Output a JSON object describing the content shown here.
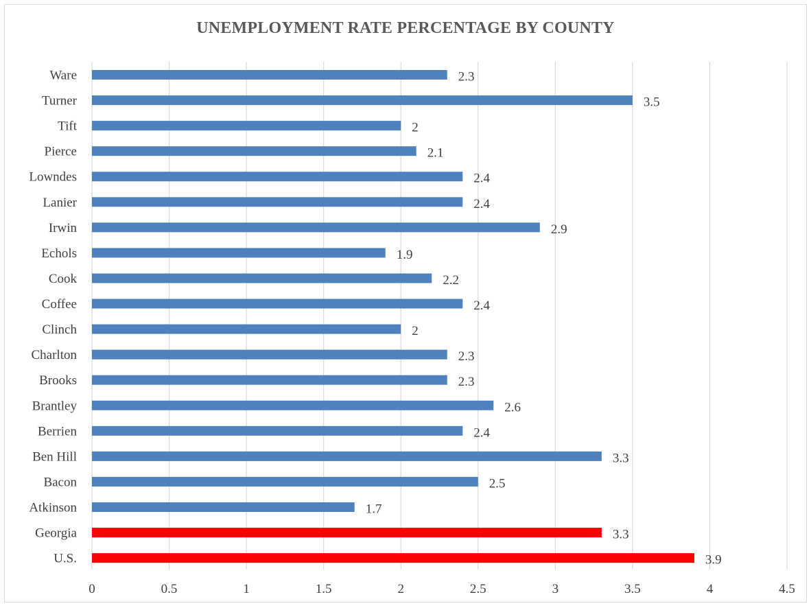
{
  "chart_data": {
    "type": "bar",
    "orientation": "horizontal",
    "title": "UNEMPLOYMENT RATE PERCENTAGE BY COUNTY",
    "xlabel": "",
    "ylabel": "",
    "categories": [
      "Ware",
      "Turner",
      "Tift",
      "Pierce",
      "Lowndes",
      "Lanier",
      "Irwin",
      "Echols",
      "Cook",
      "Coffee",
      "Clinch",
      "Charlton",
      "Brooks",
      "Brantley",
      "Berrien",
      "Ben Hill",
      "Bacon",
      "Atkinson",
      "Georgia",
      "U.S."
    ],
    "values": [
      2.3,
      3.5,
      2,
      2.1,
      2.4,
      2.4,
      2.9,
      1.9,
      2.2,
      2.4,
      2,
      2.3,
      2.3,
      2.6,
      2.4,
      3.3,
      2.5,
      1.7,
      3.3,
      3.9
    ],
    "data_labels": [
      "2.3",
      "3.5",
      "2",
      "2.1",
      "2.4",
      "2.4",
      "2.9",
      "1.9",
      "2.2",
      "2.4",
      "2",
      "2.3",
      "2.3",
      "2.6",
      "2.4",
      "3.3",
      "2.5",
      "1.7",
      "3.3",
      "3.9"
    ],
    "bar_colors": [
      "#4f81bd",
      "#4f81bd",
      "#4f81bd",
      "#4f81bd",
      "#4f81bd",
      "#4f81bd",
      "#4f81bd",
      "#4f81bd",
      "#4f81bd",
      "#4f81bd",
      "#4f81bd",
      "#4f81bd",
      "#4f81bd",
      "#4f81bd",
      "#4f81bd",
      "#4f81bd",
      "#4f81bd",
      "#4f81bd",
      "#ff0000",
      "#ff0000"
    ],
    "xlim": [
      0,
      4.5
    ],
    "x_ticks": [
      0,
      0.5,
      1,
      1.5,
      2,
      2.5,
      3,
      3.5,
      4,
      4.5
    ],
    "x_tick_labels": [
      "0",
      "0.5",
      "1",
      "1.5",
      "2",
      "2.5",
      "3",
      "3.5",
      "4",
      "4.5"
    ],
    "grid": "vertical",
    "legend": "none",
    "colors": {
      "county": "#4f81bd",
      "highlight": "#ff0000",
      "gridline": "#d9d9d9",
      "text": "#404040",
      "title": "#595959"
    }
  }
}
